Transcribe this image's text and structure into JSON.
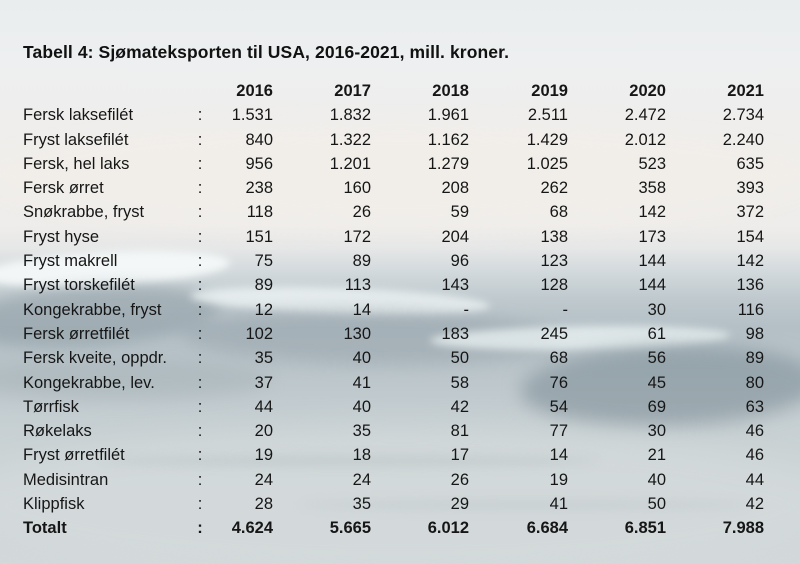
{
  "chart_data": {
    "type": "table",
    "title": "Tabell 4: Sjømateksporten til USA, 2016-2021, mill. kroner.",
    "unit": "mill. kroner",
    "separator": ":",
    "columns": [
      "2016",
      "2017",
      "2018",
      "2019",
      "2020",
      "2021"
    ],
    "rows": [
      {
        "label": "Fersk laksefilét",
        "display": [
          "1.531",
          "1.832",
          "1.961",
          "2.511",
          "2.472",
          "2.734"
        ],
        "values": [
          1531,
          1832,
          1961,
          2511,
          2472,
          2734
        ]
      },
      {
        "label": "Fryst laksefilét",
        "display": [
          "840",
          "1.322",
          "1.162",
          "1.429",
          "2.012",
          "2.240"
        ],
        "values": [
          840,
          1322,
          1162,
          1429,
          2012,
          2240
        ]
      },
      {
        "label": "Fersk, hel laks",
        "display": [
          "956",
          "1.201",
          "1.279",
          "1.025",
          "523",
          "635"
        ],
        "values": [
          956,
          1201,
          1279,
          1025,
          523,
          635
        ]
      },
      {
        "label": "Fersk ørret",
        "display": [
          "238",
          "160",
          "208",
          "262",
          "358",
          "393"
        ],
        "values": [
          238,
          160,
          208,
          262,
          358,
          393
        ]
      },
      {
        "label": "Snøkrabbe, fryst",
        "display": [
          "118",
          "26",
          "59",
          "68",
          "142",
          "372"
        ],
        "values": [
          118,
          26,
          59,
          68,
          142,
          372
        ]
      },
      {
        "label": "Fryst hyse",
        "display": [
          "151",
          "172",
          "204",
          "138",
          "173",
          "154"
        ],
        "values": [
          151,
          172,
          204,
          138,
          173,
          154
        ]
      },
      {
        "label": "Fryst makrell",
        "display": [
          "75",
          "89",
          "96",
          "123",
          "144",
          "142"
        ],
        "values": [
          75,
          89,
          96,
          123,
          144,
          142
        ]
      },
      {
        "label": "Fryst torskefilét",
        "display": [
          "89",
          "113",
          "143",
          "128",
          "144",
          "136"
        ],
        "values": [
          89,
          113,
          143,
          128,
          144,
          136
        ]
      },
      {
        "label": "Kongekrabbe, fryst",
        "display": [
          "12",
          "14",
          "-",
          "-",
          "30",
          "116"
        ],
        "values": [
          12,
          14,
          null,
          null,
          30,
          116
        ]
      },
      {
        "label": "Fersk ørretfilét",
        "display": [
          "102",
          "130",
          "183",
          "245",
          "61",
          "98"
        ],
        "values": [
          102,
          130,
          183,
          245,
          61,
          98
        ]
      },
      {
        "label": "Fersk kveite, oppdr.",
        "display": [
          "35",
          "40",
          "50",
          "68",
          "56",
          "89"
        ],
        "values": [
          35,
          40,
          50,
          68,
          56,
          89
        ]
      },
      {
        "label": "Kongekrabbe, lev.",
        "display": [
          "37",
          "41",
          "58",
          "76",
          "45",
          "80"
        ],
        "values": [
          37,
          41,
          58,
          76,
          45,
          80
        ]
      },
      {
        "label": "Tørrfisk",
        "display": [
          "44",
          "40",
          "42",
          "54",
          "69",
          "63"
        ],
        "values": [
          44,
          40,
          42,
          54,
          69,
          63
        ]
      },
      {
        "label": "Røkelaks",
        "display": [
          "20",
          "35",
          "81",
          "77",
          "30",
          "46"
        ],
        "values": [
          20,
          35,
          81,
          77,
          30,
          46
        ]
      },
      {
        "label": "Fryst ørretfilét",
        "display": [
          "19",
          "18",
          "17",
          "14",
          "21",
          "46"
        ],
        "values": [
          19,
          18,
          17,
          14,
          21,
          46
        ]
      },
      {
        "label": "Medisintran",
        "display": [
          "24",
          "24",
          "26",
          "19",
          "40",
          "44"
        ],
        "values": [
          24,
          24,
          26,
          19,
          40,
          44
        ]
      },
      {
        "label": "Klippfisk",
        "display": [
          "28",
          "35",
          "29",
          "41",
          "50",
          "42"
        ],
        "values": [
          28,
          35,
          29,
          41,
          50,
          42
        ]
      }
    ],
    "total": {
      "label": "Totalt",
      "display": [
        "4.624",
        "5.665",
        "6.012",
        "6.684",
        "6.851",
        "7.988"
      ],
      "values": [
        4624,
        5665,
        6012,
        6684,
        6851,
        7988
      ]
    }
  },
  "colors": {
    "text": "#161616",
    "background_top": "#eeefef",
    "water": "#b6c1c7",
    "wave_shadow": "#8c9ca4",
    "foam": "#f4f8f8"
  }
}
